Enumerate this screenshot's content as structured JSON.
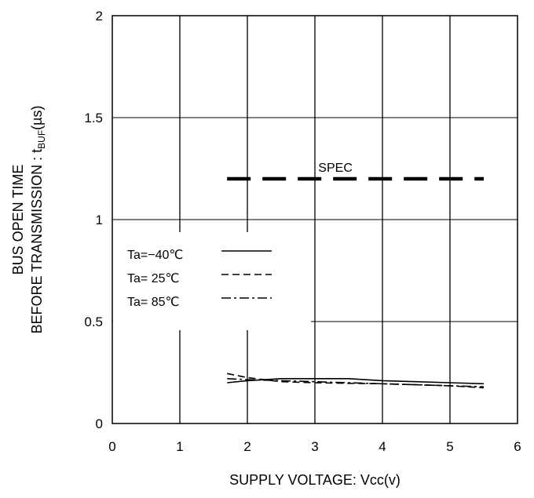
{
  "chart_data": {
    "type": "line",
    "title": "",
    "xlabel": "SUPPLY VOLTAGE: Vcc(v)",
    "ylabel_line1": "BUS OPEN TIME",
    "ylabel_line2_main": "BEFORE TRANSMISSION : t",
    "ylabel_line2_sub": "BUF",
    "ylabel_line2_unit": "(µs)",
    "xlim": [
      0,
      6
    ],
    "ylim": [
      0,
      2
    ],
    "xticks": [
      "0",
      "1",
      "2",
      "3",
      "4",
      "5",
      "6"
    ],
    "yticks": [
      "0",
      "0.5",
      "1",
      "1.5",
      "2"
    ],
    "grid": true,
    "legend_placement": "center-left",
    "series": [
      {
        "name": "Ta=−40℃",
        "style": "solid",
        "x": [
          1.7,
          2.0,
          2.5,
          3.0,
          3.5,
          4.0,
          4.5,
          5.0,
          5.5
        ],
        "y": [
          0.2,
          0.21,
          0.22,
          0.22,
          0.22,
          0.21,
          0.205,
          0.2,
          0.195
        ]
      },
      {
        "name": "Ta= 25℃",
        "style": "dashed",
        "x": [
          1.7,
          2.0,
          2.5,
          3.0,
          3.5,
          4.0,
          4.5,
          5.0,
          5.5
        ],
        "y": [
          0.245,
          0.225,
          0.205,
          0.2,
          0.197,
          0.195,
          0.19,
          0.185,
          0.175
        ]
      },
      {
        "name": "Ta= 85℃",
        "style": "dashdot",
        "x": [
          1.7,
          2.0,
          2.5,
          3.0,
          3.5,
          4.0,
          4.5,
          5.0,
          5.5
        ],
        "y": [
          0.22,
          0.215,
          0.21,
          0.205,
          0.2,
          0.195,
          0.19,
          0.185,
          0.18
        ]
      }
    ],
    "spec": {
      "label": "SPEC",
      "x": [
        1.7,
        5.5
      ],
      "y": 1.2
    }
  }
}
